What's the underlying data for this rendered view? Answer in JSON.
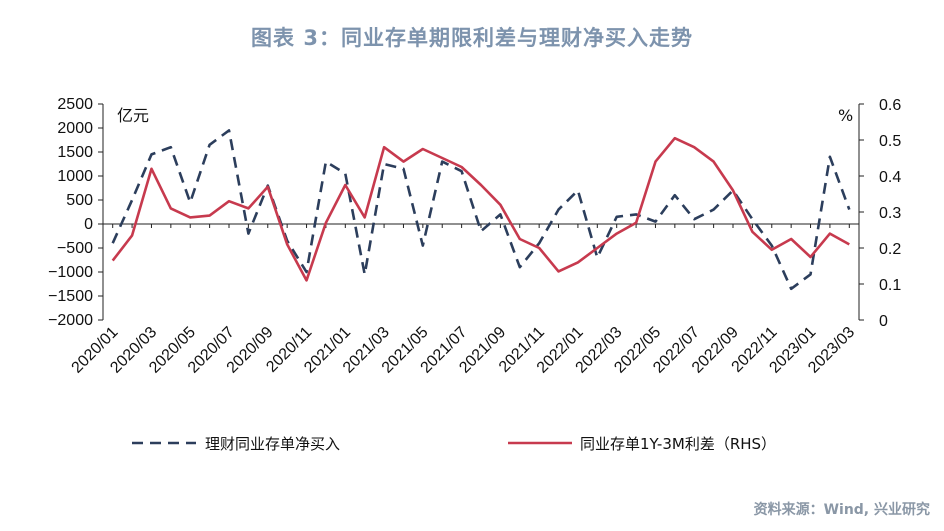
{
  "title": "图表 3：同业存单期限利差与理财净买入走势",
  "source": "资料来源：Wind, 兴业研究",
  "colors": {
    "series1": "#2c3e5c",
    "series2": "#c73a4e",
    "title": "#7d93ad"
  },
  "chart_data": {
    "type": "line",
    "x": [
      "2020/01",
      "2020/02",
      "2020/03",
      "2020/04",
      "2020/05",
      "2020/06",
      "2020/07",
      "2020/08",
      "2020/09",
      "2020/10",
      "2020/11",
      "2020/12",
      "2021/01",
      "2021/02",
      "2021/03",
      "2021/04",
      "2021/05",
      "2021/06",
      "2021/07",
      "2021/08",
      "2021/09",
      "2021/10",
      "2021/11",
      "2021/12",
      "2022/01",
      "2022/02",
      "2022/03",
      "2022/04",
      "2022/05",
      "2022/06",
      "2022/07",
      "2022/08",
      "2022/09",
      "2022/10",
      "2022/11",
      "2022/12",
      "2023/01",
      "2023/02",
      "2023/03"
    ],
    "x_tick_labels": [
      "2020/01",
      "2020/03",
      "2020/05",
      "2020/07",
      "2020/09",
      "2020/11",
      "2021/01",
      "2021/03",
      "2021/05",
      "2021/07",
      "2021/09",
      "2021/11",
      "2022/01",
      "2022/03",
      "2022/05",
      "2022/07",
      "2022/09",
      "2022/11",
      "2023/01",
      "2023/03"
    ],
    "y_left": {
      "unit": "亿元",
      "min": -2000,
      "max": 2500,
      "ticks": [
        2500,
        2000,
        1500,
        1000,
        500,
        0,
        -500,
        -1000,
        -1500,
        -2000
      ]
    },
    "y_right": {
      "unit": "%",
      "min": 0,
      "max": 0.6,
      "ticks": [
        0.6,
        0.5,
        0.4,
        0.3,
        0.2,
        0.1,
        0
      ]
    },
    "series": [
      {
        "name": "理财同业存单净买入",
        "axis": "left",
        "style": "dashed",
        "values": [
          -400,
          500,
          1450,
          1600,
          450,
          1650,
          1950,
          -200,
          800,
          -350,
          -1000,
          1300,
          1050,
          -1050,
          1250,
          1150,
          -450,
          1300,
          1100,
          -150,
          200,
          -900,
          -400,
          300,
          700,
          -700,
          150,
          200,
          50,
          600,
          100,
          300,
          700,
          100,
          -450,
          -1350,
          -1050,
          1400,
          300
        ]
      },
      {
        "name": "同业存单1Y-3M利差（RHS）",
        "axis": "right",
        "style": "solid",
        "values": [
          0.165,
          0.235,
          0.42,
          0.31,
          0.285,
          0.29,
          0.33,
          0.31,
          0.37,
          0.21,
          0.11,
          0.27,
          0.375,
          0.285,
          0.48,
          0.44,
          0.475,
          0.45,
          0.425,
          0.375,
          0.32,
          0.225,
          0.2,
          0.135,
          0.16,
          0.2,
          0.24,
          0.27,
          0.44,
          0.505,
          0.48,
          0.44,
          0.36,
          0.245,
          0.195,
          0.225,
          0.175,
          0.24,
          0.21
        ]
      }
    ],
    "legend": {
      "position": "bottom",
      "entries": [
        "理财同业存单净买入",
        "同业存单1Y-3M利差（RHS）"
      ]
    },
    "grid": false
  }
}
